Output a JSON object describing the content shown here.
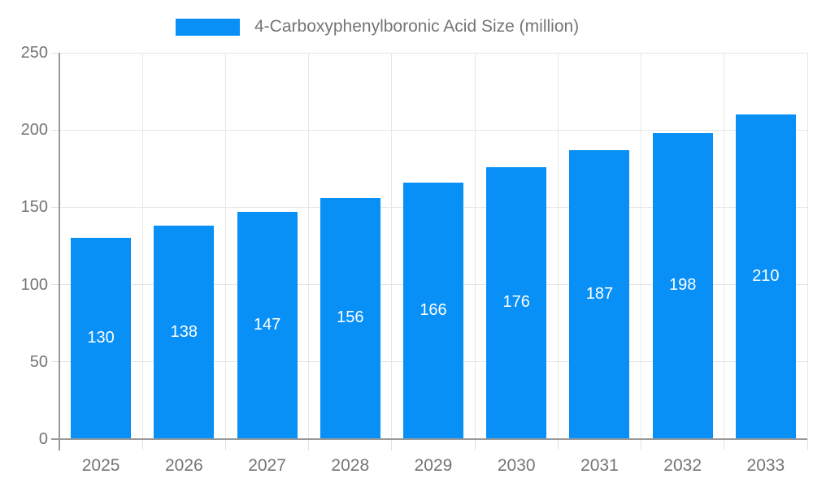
{
  "chart_data": {
    "type": "bar",
    "title": "",
    "series_name": "4-Carboxyphenylboronic Acid Size (million)",
    "categories": [
      "2025",
      "2026",
      "2027",
      "2028",
      "2029",
      "2030",
      "2031",
      "2032",
      "2033"
    ],
    "values": [
      130,
      138,
      147,
      156,
      166,
      176,
      187,
      198,
      210
    ],
    "xlabel": "",
    "ylabel": "",
    "ylim": [
      0,
      250
    ],
    "yticks": [
      0,
      50,
      100,
      150,
      200,
      250
    ],
    "grid": true,
    "legend_position": "top",
    "value_labels": "inside-center",
    "colors": {
      "bar": "#0890f7",
      "value_label": "#ffffff",
      "axis_text": "#757575",
      "axis_line": "#999999",
      "gridline": "#e6e6e6"
    }
  }
}
